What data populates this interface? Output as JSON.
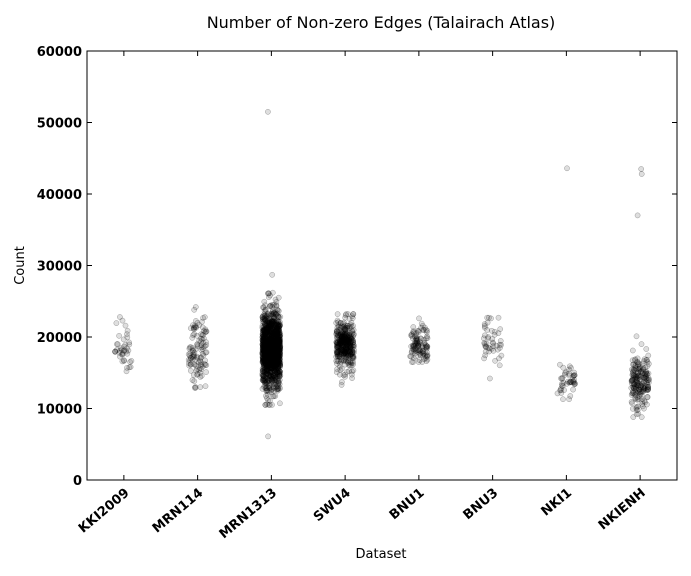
{
  "chart_data": {
    "type": "scatter",
    "title": "Number of Non-zero Edges (Talairach Atlas)",
    "xlabel": "Dataset",
    "ylabel": "Count",
    "ylim": [
      0,
      60000
    ],
    "yticks": [
      0,
      10000,
      20000,
      30000,
      40000,
      50000,
      60000
    ],
    "grid": false,
    "legend": "none",
    "point_color": "#000000",
    "categories": [
      "KKI2009",
      "MRN114",
      "MRN1313",
      "SWU4",
      "BNU1",
      "BNU3",
      "NKI1",
      "NKIENH"
    ],
    "series": [
      {
        "category": "KKI2009",
        "n": 42,
        "median": 18500,
        "spread": 1700,
        "min": 15200,
        "max": 22800,
        "notable": [
          22800,
          22300,
          21600,
          15200
        ]
      },
      {
        "category": "MRN114",
        "n": 114,
        "median": 18000,
        "spread": 2200,
        "min": 12900,
        "max": 24200,
        "notable": [
          24200,
          23800,
          12900,
          13000
        ]
      },
      {
        "category": "MRN1313",
        "n": 1313,
        "median": 18300,
        "spread": 2600,
        "min": 6100,
        "max": 51500,
        "notable": [
          51500,
          28700,
          26200,
          25800,
          6100,
          11700
        ]
      },
      {
        "category": "SWU4",
        "n": 383,
        "median": 18800,
        "spread": 1700,
        "min": 13300,
        "max": 23200,
        "notable": [
          23200,
          13300,
          13700
        ]
      },
      {
        "category": "BNU1",
        "n": 114,
        "median": 19000,
        "spread": 1300,
        "min": 16500,
        "max": 22600,
        "notable": [
          22600,
          16500
        ]
      },
      {
        "category": "BNU3",
        "n": 47,
        "median": 18800,
        "spread": 1800,
        "min": 14200,
        "max": 22700,
        "notable": [
          22700,
          22600,
          14200
        ]
      },
      {
        "category": "NKI1",
        "n": 48,
        "median": 13600,
        "spread": 1000,
        "min": 11300,
        "max": 43600,
        "notable": [
          43600,
          15900,
          11300
        ]
      },
      {
        "category": "NKIENH",
        "n": 200,
        "median": 13600,
        "spread": 1800,
        "min": 8800,
        "max": 43500,
        "notable": [
          43500,
          42800,
          37000,
          20100,
          8800,
          9200
        ]
      }
    ]
  }
}
